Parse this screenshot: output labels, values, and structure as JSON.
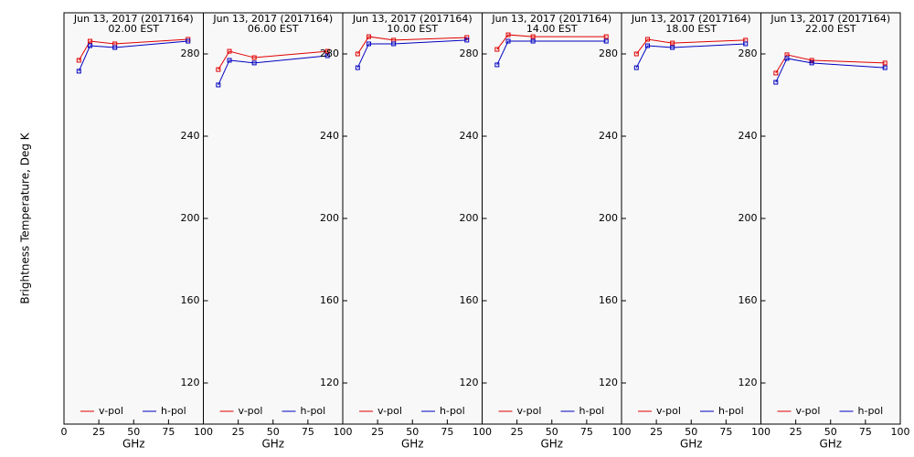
{
  "chart_data": [
    {
      "type": "line",
      "title": "Jun 13, 2017 (2017164)",
      "subtitle": "02.00 EST",
      "x_label": "GHz",
      "y_label": "Brightness Temperature, Deg K",
      "x": [
        10.7,
        18.7,
        36.5,
        89
      ],
      "xlim": [
        0,
        100
      ],
      "xticks": [
        0,
        25,
        50,
        75,
        100
      ],
      "ylim": [
        100,
        300
      ],
      "series": [
        {
          "name": "v-pol",
          "color": "#e00000",
          "values": [
            276.9,
            286.2,
            284.9,
            287.1
          ]
        },
        {
          "name": "h-pol",
          "color": "#0000c0",
          "values": [
            271.6,
            284.0,
            283.1,
            286.2
          ]
        }
      ]
    },
    {
      "type": "line",
      "title": "Jun 13, 2017 (2017164)",
      "subtitle": "06.00 EST",
      "x_label": "GHz",
      "x": [
        10.7,
        18.7,
        36.5,
        89
      ],
      "xlim": [
        0,
        100
      ],
      "xticks": [
        25,
        50,
        75,
        100
      ],
      "ylim": [
        100,
        300
      ],
      "yticks": [
        120,
        160,
        200,
        240,
        280
      ],
      "series": [
        {
          "name": "v-pol",
          "color": "#e00000",
          "values": [
            272.4,
            281.3,
            278.2,
            281.3
          ]
        },
        {
          "name": "h-pol",
          "color": "#0000c0",
          "values": [
            264.9,
            276.9,
            275.6,
            279.1
          ]
        }
      ]
    },
    {
      "type": "line",
      "title": "Jun 13, 2017 (2017164)",
      "subtitle": "10.00 EST",
      "x_label": "GHz",
      "x": [
        10.7,
        18.7,
        36.5,
        89
      ],
      "xlim": [
        0,
        100
      ],
      "xticks": [
        25,
        50,
        75,
        100
      ],
      "ylim": [
        100,
        300
      ],
      "yticks": [
        120,
        160,
        200,
        240,
        280
      ],
      "series": [
        {
          "name": "v-pol",
          "color": "#e00000",
          "values": [
            280.0,
            288.4,
            286.7,
            288.0
          ]
        },
        {
          "name": "h-pol",
          "color": "#0000c0",
          "values": [
            273.3,
            284.9,
            284.9,
            286.7
          ]
        }
      ]
    },
    {
      "type": "line",
      "title": "Jun 13, 2017 (2017164)",
      "subtitle": "14.00 EST",
      "x_label": "GHz",
      "x": [
        10.7,
        18.7,
        36.5,
        89
      ],
      "xlim": [
        0,
        100
      ],
      "xticks": [
        25,
        50,
        75,
        100
      ],
      "ylim": [
        100,
        300
      ],
      "yticks": [
        120,
        160,
        200,
        240,
        280
      ],
      "series": [
        {
          "name": "v-pol",
          "color": "#e00000",
          "values": [
            282.2,
            289.3,
            288.4,
            288.4
          ]
        },
        {
          "name": "h-pol",
          "color": "#0000c0",
          "values": [
            274.7,
            286.2,
            286.2,
            286.2
          ]
        }
      ]
    },
    {
      "type": "line",
      "title": "Jun 13, 2017 (2017164)",
      "subtitle": "18.00 EST",
      "x_label": "GHz",
      "x": [
        10.7,
        18.7,
        36.5,
        89
      ],
      "xlim": [
        0,
        100
      ],
      "xticks": [
        25,
        50,
        75,
        100
      ],
      "ylim": [
        100,
        300
      ],
      "yticks": [
        120,
        160,
        200,
        240,
        280
      ],
      "series": [
        {
          "name": "v-pol",
          "color": "#e00000",
          "values": [
            280.0,
            287.1,
            285.3,
            286.7
          ]
        },
        {
          "name": "h-pol",
          "color": "#0000c0",
          "values": [
            273.3,
            284.0,
            283.1,
            284.9
          ]
        }
      ]
    },
    {
      "type": "line",
      "title": "Jun 13, 2017 (2017164)",
      "subtitle": "22.00 EST",
      "x_label": "GHz",
      "x": [
        10.7,
        18.7,
        36.5,
        89
      ],
      "xlim": [
        0,
        100
      ],
      "xticks": [
        25,
        50,
        75,
        100
      ],
      "ylim": [
        100,
        300
      ],
      "yticks": [
        120,
        160,
        200,
        240,
        280
      ],
      "series": [
        {
          "name": "v-pol",
          "color": "#e00000",
          "values": [
            270.7,
            279.6,
            276.9,
            275.6
          ]
        },
        {
          "name": "h-pol",
          "color": "#0000c0",
          "values": [
            266.2,
            277.8,
            275.6,
            273.3
          ]
        }
      ]
    }
  ]
}
